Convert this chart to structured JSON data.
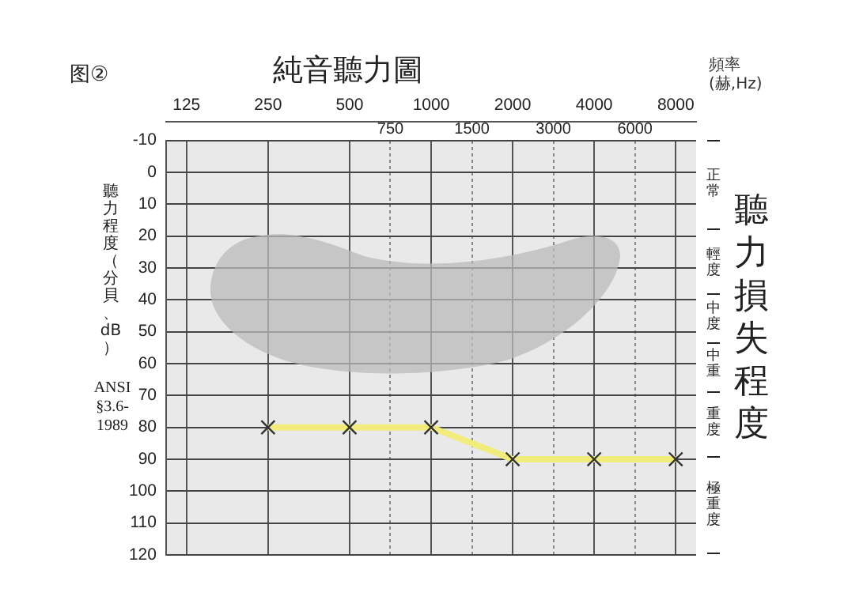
{
  "chart_data": {
    "type": "line",
    "title": "純音聽力圖",
    "xlabel": "頻率 (赫,Hz)",
    "ylabel": "聽力程度（分貝、dB）",
    "annotations": [
      "图②",
      "ANSI §3.6-1989",
      "聽力損失程度",
      "正常",
      "輕度",
      "中度",
      "中重",
      "重度",
      "極重度"
    ],
    "categories": [
      "125",
      null,
      "250",
      null,
      "500",
      "750",
      "1000",
      "1500",
      "2000",
      "3000",
      "4000",
      "6000",
      "8000"
    ],
    "ylim": [
      120,
      -10
    ],
    "yticks": [
      -10,
      0,
      10,
      20,
      30,
      40,
      50,
      60,
      70,
      80,
      90,
      100,
      110,
      120
    ],
    "grid": true,
    "legend": false,
    "marker": "cross",
    "line_style": "solid",
    "series": [
      {
        "color": "#f2ec7c",
        "values": [
          null,
          null,
          80,
          null,
          80,
          null,
          80,
          null,
          90,
          null,
          90,
          null,
          90
        ]
      }
    ]
  }
}
